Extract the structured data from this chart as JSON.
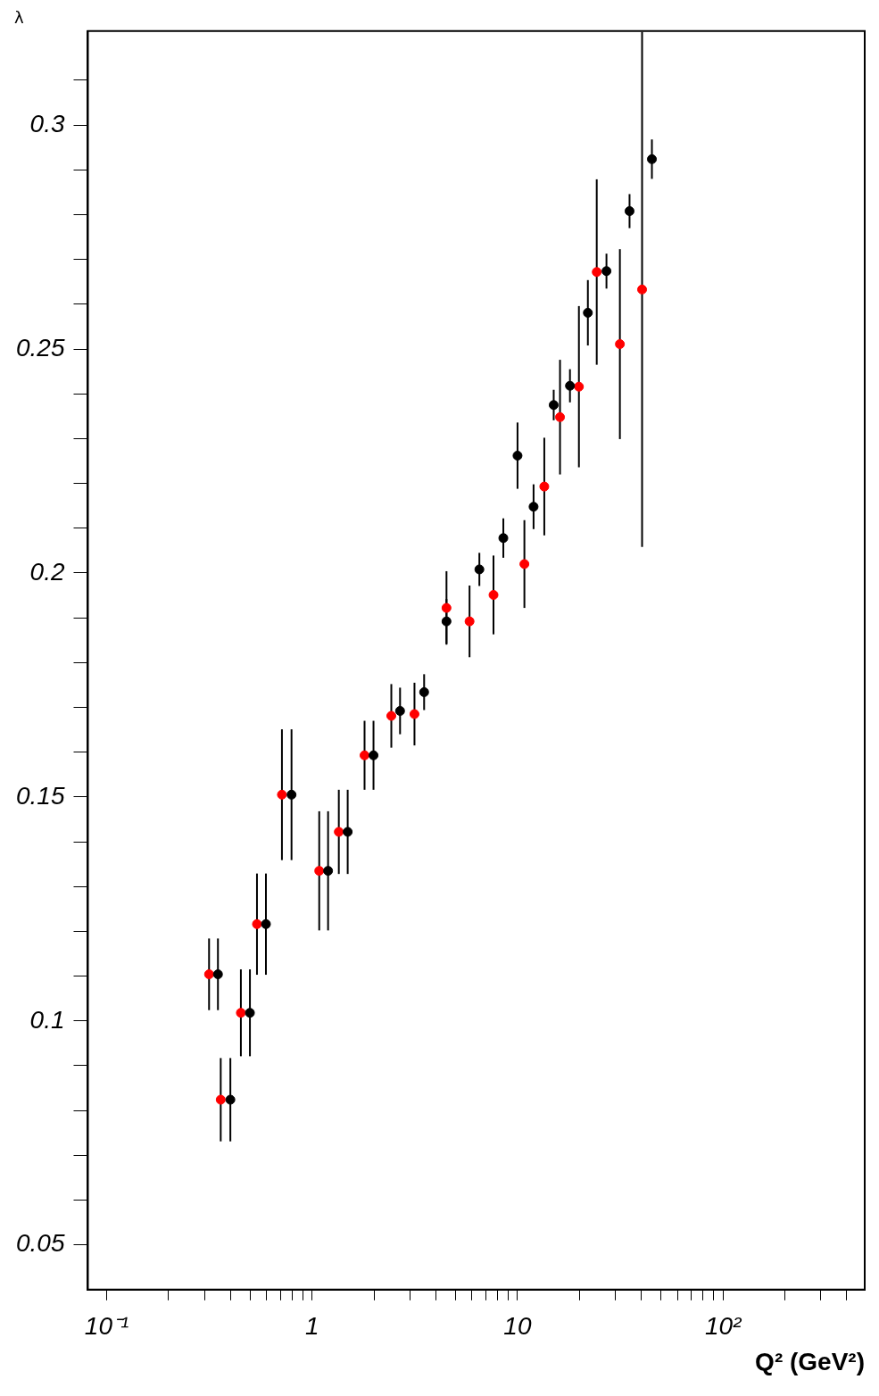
{
  "chart_data": {
    "type": "scatter",
    "xlabel": "Q² (GeV²)",
    "ylabel": "λ",
    "log": "x",
    "grid": false,
    "legend": false,
    "marker": "circle",
    "xlim": [
      0.081,
      490
    ],
    "ylim": [
      0.04,
      0.321
    ],
    "xticks": [
      {
        "value": 0.1,
        "label": "10⁻¹"
      },
      {
        "value": 0.2,
        "label": null
      },
      {
        "value": 0.3,
        "label": null
      },
      {
        "value": 0.4,
        "label": null
      },
      {
        "value": 0.5,
        "label": null
      },
      {
        "value": 0.6,
        "label": null
      },
      {
        "value": 0.7,
        "label": null
      },
      {
        "value": 0.8,
        "label": null
      },
      {
        "value": 0.9,
        "label": null
      },
      1,
      {
        "value": 2,
        "label": null
      },
      {
        "value": 3,
        "label": null
      },
      {
        "value": 4,
        "label": null
      },
      {
        "value": 5,
        "label": null
      },
      {
        "value": 6,
        "label": null
      },
      {
        "value": 7,
        "label": null
      },
      {
        "value": 8,
        "label": null
      },
      {
        "value": 9,
        "label": null
      },
      10,
      {
        "value": 20,
        "label": null
      },
      {
        "value": 30,
        "label": null
      },
      {
        "value": 40,
        "label": null
      },
      {
        "value": 50,
        "label": null
      },
      {
        "value": 60,
        "label": null
      },
      {
        "value": 70,
        "label": null
      },
      {
        "value": 80,
        "label": null
      },
      {
        "value": 90,
        "label": null
      },
      {
        "value": 100,
        "label": "10²"
      },
      {
        "value": 200,
        "label": null
      },
      {
        "value": 300,
        "label": null
      },
      {
        "value": 400,
        "label": null
      }
    ],
    "yticks": [
      {
        "value": 0.05,
        "label": "0.05"
      },
      {
        "value": 0.06,
        "label": null
      },
      {
        "value": 0.07,
        "label": null
      },
      {
        "value": 0.08,
        "label": null
      },
      {
        "value": 0.09,
        "label": null
      },
      {
        "value": 0.1,
        "label": "0.1"
      },
      {
        "value": 0.11,
        "label": null
      },
      {
        "value": 0.12,
        "label": null
      },
      {
        "value": 0.13,
        "label": null
      },
      {
        "value": 0.14,
        "label": null
      },
      {
        "value": 0.15,
        "label": "0.15"
      },
      {
        "value": 0.16,
        "label": null
      },
      {
        "value": 0.17,
        "label": null
      },
      {
        "value": 0.18,
        "label": null
      },
      {
        "value": 0.19,
        "label": null
      },
      {
        "value": 0.2,
        "label": "0.2"
      },
      {
        "value": 0.21,
        "label": null
      },
      {
        "value": 0.22,
        "label": null
      },
      {
        "value": 0.23,
        "label": null
      },
      {
        "value": 0.24,
        "label": null
      },
      {
        "value": 0.25,
        "label": "0.25"
      },
      {
        "value": 0.26,
        "label": null
      },
      {
        "value": 0.27,
        "label": null
      },
      {
        "value": 0.28,
        "label": null
      },
      {
        "value": 0.29,
        "label": null
      },
      {
        "value": 0.3,
        "label": "0.3"
      },
      {
        "value": 0.31,
        "label": null
      }
    ],
    "series": [
      {
        "color": "#000000",
        "x": [
          0.348,
          0.4,
          0.498,
          0.596,
          0.794,
          1.196,
          1.49,
          1.99,
          2.68,
          3.51,
          4.51,
          6.52,
          8.53,
          10,
          11.97,
          15.0,
          18.0,
          22.0,
          27.1,
          35.1,
          45.1
        ],
        "values": [
          0.1104,
          0.0824,
          0.1018,
          0.1216,
          0.1505,
          0.1335,
          0.1422,
          0.1593,
          0.1692,
          0.1734,
          0.1892,
          0.2008,
          0.2078,
          0.2262,
          0.2148,
          0.2375,
          0.2418,
          0.2581,
          0.2674,
          0.2808,
          0.2924
        ],
        "errors": [
          0.008,
          0.0093,
          0.0097,
          0.0113,
          0.0146,
          0.0133,
          0.0094,
          0.0077,
          0.0052,
          0.004,
          0.005,
          0.0037,
          0.0044,
          0.0074,
          0.005,
          0.0034,
          0.0037,
          0.0073,
          0.0039,
          0.0038,
          0.0044
        ]
      },
      {
        "color": "#ff0000",
        "x": [
          0.315,
          0.359,
          0.45,
          0.539,
          0.713,
          1.083,
          1.349,
          1.8,
          2.43,
          3.15,
          4.51,
          5.84,
          7.64,
          10.8,
          13.5,
          16.1,
          19.9,
          24.3,
          31.5,
          40.4
        ],
        "values": [
          0.1104,
          0.0824,
          0.1018,
          0.1216,
          0.1505,
          0.1335,
          0.1422,
          0.1593,
          0.1681,
          0.1685,
          0.1922,
          0.1892,
          0.1951,
          0.202,
          0.2193,
          0.2348,
          0.2416,
          0.2672,
          0.2511,
          0.2633
        ],
        "errors": [
          0.008,
          0.0093,
          0.0097,
          0.0113,
          0.0146,
          0.0133,
          0.0094,
          0.0077,
          0.0071,
          0.007,
          0.0082,
          0.008,
          0.0088,
          0.0098,
          0.0109,
          0.0128,
          0.018,
          0.0207,
          0.0212,
          0.0575
        ]
      }
    ]
  }
}
